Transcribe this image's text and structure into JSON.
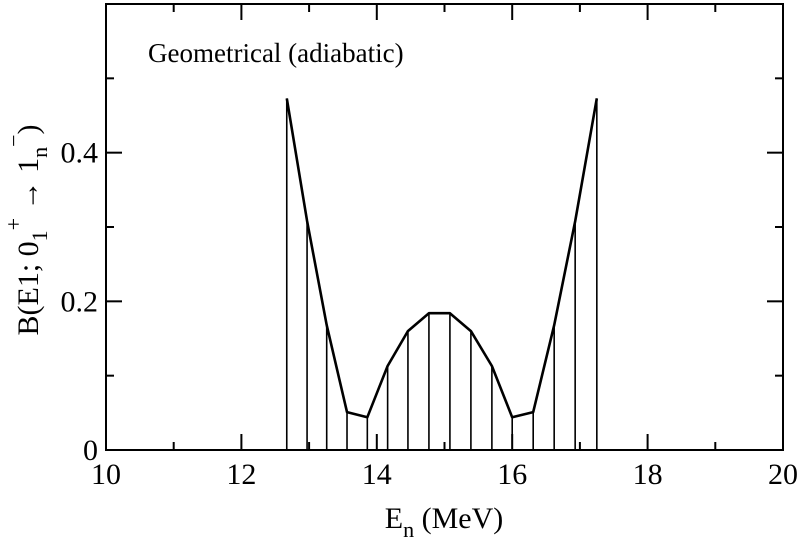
{
  "chart_data": {
    "type": "line",
    "annotation": "Geometrical (adiabatic)",
    "xlabel": {
      "main": "E",
      "sub": "n",
      "rest": " (MeV)"
    },
    "ylabel": {
      "p1": "B(E1; 0",
      "p1_sub": "1",
      "p1_sup": "+",
      "arrow": " → 1",
      "p2_sub": "n",
      "p2_sup": "−",
      "close": ")"
    },
    "xlim": [
      10,
      20
    ],
    "ylim": [
      0,
      0.6
    ],
    "xticks": [
      "10",
      "12",
      "14",
      "16",
      "18",
      "20"
    ],
    "yticks": [
      "0",
      "0.2",
      "0.4"
    ],
    "x_tick_values": [
      10,
      12,
      14,
      16,
      18,
      20
    ],
    "y_tick_values": [
      0,
      0.2,
      0.4
    ],
    "x_minor_ticks": [
      11,
      13,
      15,
      17,
      19
    ],
    "y_minor_ticks": [
      0.1,
      0.3,
      0.5
    ],
    "grid": false,
    "series": [
      {
        "x": [
          12.67,
          12.97,
          13.26,
          13.56,
          13.86,
          14.16,
          14.46,
          14.77,
          15.08,
          15.39,
          15.7,
          16.0,
          16.31,
          16.62,
          16.93,
          17.25
        ],
        "y": [
          0.473,
          0.308,
          0.168,
          0.051,
          0.044,
          0.113,
          0.16,
          0.184,
          0.184,
          0.16,
          0.113,
          0.044,
          0.051,
          0.168,
          0.308,
          0.473
        ]
      }
    ],
    "colors": {
      "line": "#000000",
      "background": "#ffffff"
    }
  }
}
